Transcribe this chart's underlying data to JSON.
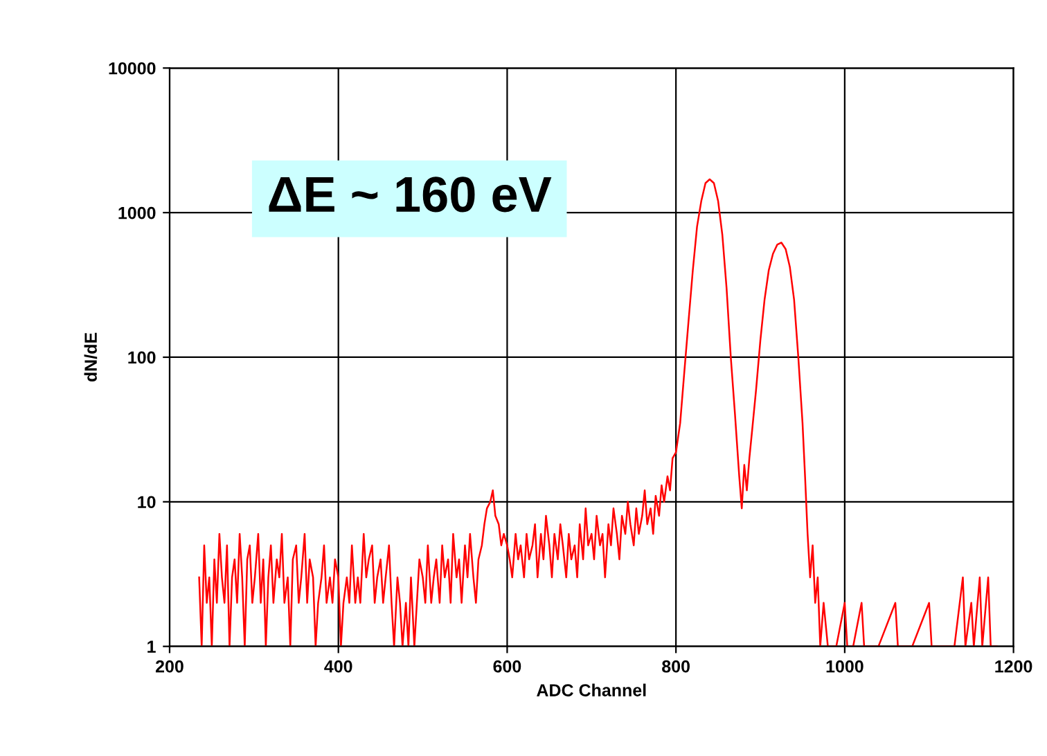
{
  "chart_data": {
    "type": "line",
    "xlabel": "ADC Channel",
    "ylabel": "dN/dE",
    "log": "y",
    "grid": true,
    "xlim": [
      200,
      1200
    ],
    "xticks": [
      200,
      400,
      600,
      800,
      1000,
      1200
    ],
    "ylim": [
      1,
      10000
    ],
    "yticks": [
      1,
      10,
      100,
      1000,
      10000
    ],
    "annotations": [
      "ΔE ~ 160 eV"
    ],
    "x": [
      235,
      238,
      241,
      244,
      247,
      250,
      253,
      256,
      259,
      262,
      265,
      268,
      271,
      274,
      277,
      280,
      283,
      286,
      289,
      292,
      295,
      298,
      301,
      305,
      308,
      311,
      314,
      317,
      320,
      323,
      327,
      330,
      333,
      336,
      340,
      343,
      346,
      350,
      353,
      356,
      360,
      363,
      366,
      370,
      373,
      376,
      380,
      383,
      386,
      390,
      393,
      396,
      400,
      403,
      406,
      410,
      413,
      416,
      420,
      423,
      426,
      430,
      433,
      436,
      440,
      443,
      446,
      450,
      453,
      456,
      460,
      463,
      466,
      470,
      473,
      476,
      480,
      483,
      486,
      490,
      493,
      496,
      500,
      503,
      506,
      510,
      513,
      516,
      520,
      523,
      526,
      530,
      533,
      536,
      540,
      543,
      546,
      550,
      553,
      556,
      560,
      563,
      566,
      570,
      573,
      576,
      580,
      583,
      586,
      590,
      593,
      596,
      600,
      603,
      606,
      610,
      613,
      616,
      620,
      623,
      626,
      630,
      633,
      636,
      640,
      643,
      646,
      650,
      653,
      656,
      660,
      663,
      666,
      670,
      673,
      676,
      680,
      683,
      686,
      690,
      693,
      696,
      700,
      703,
      706,
      710,
      713,
      716,
      720,
      723,
      726,
      730,
      733,
      736,
      740,
      743,
      746,
      750,
      753,
      756,
      760,
      763,
      766,
      770,
      773,
      776,
      780,
      783,
      786,
      790,
      793,
      796,
      800,
      805,
      810,
      815,
      820,
      825,
      830,
      835,
      840,
      845,
      850,
      855,
      860,
      865,
      870,
      875,
      878,
      881,
      884,
      887,
      890,
      895,
      900,
      905,
      910,
      915,
      920,
      925,
      930,
      935,
      940,
      945,
      950,
      953,
      956,
      959,
      962,
      965,
      968,
      971,
      975,
      980,
      990,
      1000,
      1003,
      1010,
      1020,
      1023,
      1040,
      1060,
      1063,
      1080,
      1100,
      1103,
      1130,
      1140,
      1143,
      1150,
      1153,
      1160,
      1163,
      1170,
      1173,
      1180
    ],
    "series": [
      {
        "color": "#ff0000",
        "values": [
          3,
          1,
          5,
          2,
          3,
          1,
          4,
          2,
          6,
          3,
          2,
          5,
          1,
          3,
          4,
          2,
          6,
          3,
          1,
          4,
          5,
          2,
          3,
          6,
          2,
          4,
          1,
          3,
          5,
          2,
          4,
          3,
          6,
          2,
          3,
          1,
          4,
          5,
          2,
          3,
          6,
          2,
          4,
          3,
          1,
          2,
          3,
          5,
          2,
          3,
          2,
          4,
          3,
          1,
          2,
          3,
          2,
          5,
          2,
          3,
          2,
          6,
          3,
          4,
          5,
          2,
          3,
          4,
          2,
          3,
          5,
          2,
          1,
          3,
          2,
          1,
          2,
          1,
          3,
          1,
          2,
          4,
          3,
          2,
          5,
          2,
          3,
          4,
          2,
          5,
          3,
          4,
          2,
          6,
          3,
          4,
          2,
          5,
          3,
          6,
          3,
          2,
          4,
          5,
          7,
          9,
          10,
          12,
          8,
          7,
          5,
          6,
          5,
          4,
          3,
          6,
          4,
          5,
          3,
          6,
          4,
          5,
          7,
          3,
          6,
          4,
          8,
          5,
          3,
          6,
          4,
          7,
          5,
          3,
          6,
          4,
          5,
          3,
          7,
          4,
          9,
          5,
          6,
          4,
          8,
          5,
          6,
          3,
          7,
          5,
          9,
          6,
          4,
          8,
          6,
          10,
          7,
          5,
          9,
          6,
          8,
          12,
          7,
          9,
          6,
          11,
          8,
          13,
          10,
          15,
          12,
          20,
          22,
          35,
          80,
          180,
          400,
          800,
          1200,
          1600,
          1700,
          1600,
          1200,
          700,
          300,
          100,
          40,
          15,
          9,
          18,
          12,
          20,
          30,
          60,
          130,
          250,
          400,
          520,
          600,
          620,
          560,
          420,
          250,
          100,
          35,
          15,
          6,
          3,
          5,
          2,
          3,
          1,
          2,
          1,
          1,
          2,
          1,
          1,
          2,
          1,
          1,
          2,
          1,
          1,
          2,
          1,
          1,
          3,
          1,
          2,
          1,
          3,
          1,
          3,
          1,
          1
        ]
      }
    ]
  }
}
